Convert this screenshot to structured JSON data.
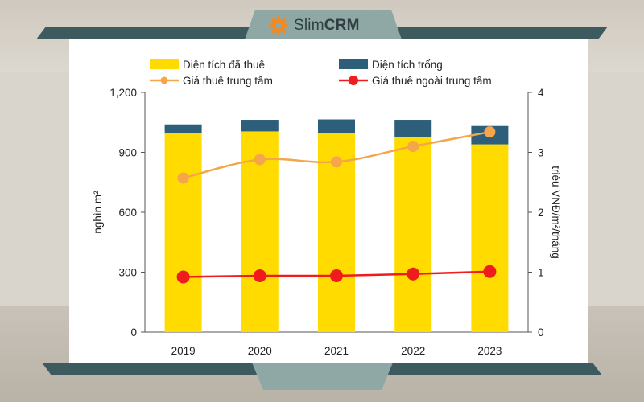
{
  "brand": {
    "name_light": "Slim",
    "name_bold": "CRM",
    "accent": "#f08a24"
  },
  "chart_data": {
    "type": "bar",
    "categories": [
      "2019",
      "2020",
      "2021",
      "2022",
      "2023"
    ],
    "series": [
      {
        "name": "Diện tích đã thuê",
        "kind": "stacked-bar",
        "axis": "left",
        "color": "#ffdb00",
        "values": [
          995,
          1005,
          995,
          975,
          940
        ]
      },
      {
        "name": "Diện tích trống",
        "kind": "stacked-bar",
        "axis": "left",
        "color": "#2e5f7a",
        "values": [
          45,
          58,
          70,
          88,
          92
        ]
      },
      {
        "name": "Giá thuê trung tâm",
        "kind": "line",
        "axis": "right",
        "color": "#f5a54a",
        "values": [
          2.57,
          2.88,
          2.84,
          3.1,
          3.34
        ]
      },
      {
        "name": "Giá thuê ngoài trung tâm",
        "kind": "line",
        "axis": "right",
        "color": "#ee1c1c",
        "values": [
          0.92,
          0.94,
          0.94,
          0.97,
          1.01
        ]
      }
    ],
    "ylabel": "nghìn m²",
    "y2label": "triệu VNĐ/m²/tháng",
    "ylim": [
      0,
      1200
    ],
    "y2lim": [
      0,
      4
    ],
    "yticks": [
      "0",
      "300",
      "600",
      "900",
      "1,200"
    ],
    "yticks_values": [
      0,
      300,
      600,
      900,
      1200
    ],
    "y2ticks": [
      "0",
      "1",
      "2",
      "3",
      "4"
    ],
    "y2ticks_values": [
      0,
      1,
      2,
      3,
      4
    ],
    "legend_position": "top",
    "grid": false
  }
}
